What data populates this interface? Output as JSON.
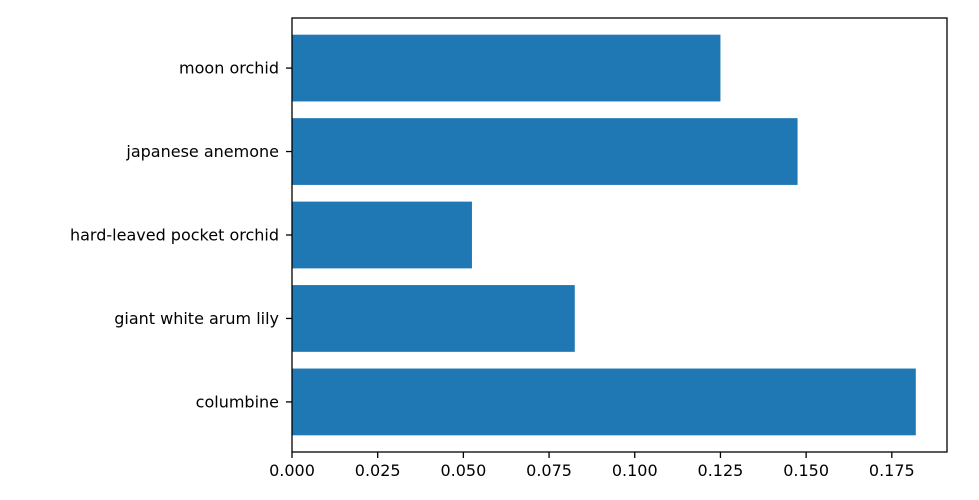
{
  "chart_data": {
    "type": "bar",
    "orientation": "horizontal",
    "categories": [
      "columbine",
      "giant white arum lily",
      "hard-leaved pocket orchid",
      "japanese anemone",
      "moon orchid"
    ],
    "values": [
      0.182,
      0.0825,
      0.0525,
      0.1475,
      0.125
    ],
    "title": "",
    "xlabel": "",
    "ylabel": "",
    "xlim": [
      0.0,
      0.1911
    ],
    "xticks": [
      0.0,
      0.025,
      0.05,
      0.075,
      0.1,
      0.125,
      0.15,
      0.175
    ],
    "xtick_labels": [
      "0.000",
      "0.025",
      "0.050",
      "0.075",
      "0.100",
      "0.125",
      "0.150",
      "0.175"
    ],
    "bar_color": "#1f77b4",
    "grid": false,
    "legend": "none"
  }
}
